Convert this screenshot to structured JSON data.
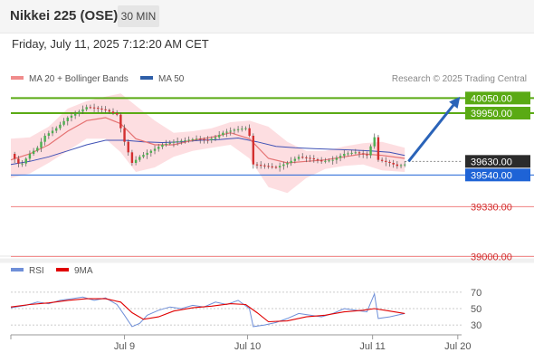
{
  "header": {
    "title": "Nikkei 225 (OSE)",
    "timeframe": "30 MIN"
  },
  "datetime": "Friday, July 11, 2025 7:12:20 AM CET",
  "legend": {
    "ma20": "MA 20 + Bollinger Bands",
    "ma50": "MA 50",
    "copyright": "Research © 2025 Trading Central"
  },
  "colors": {
    "bull_candle": "#4caf50",
    "bear_candle": "#d32f2f",
    "ma20": "#e57373",
    "ma50": "#3f51b5",
    "band_fill": "#fdd8dc",
    "target_level": "#5aaa14",
    "pivot_level": "#1e63d6",
    "support_level": "#f08080",
    "rsi": "#6f8fd8",
    "rsi_ma": "#e00000",
    "arrow": "#2a63b8"
  },
  "chart_data": [
    {
      "type": "candlestick",
      "title": "Nikkei 225 (OSE)",
      "timeframe": "30 MIN",
      "x_ticks": [
        "Jul 9",
        "Jul 10",
        "Jul 11",
        "Jul 20"
      ],
      "ylim": [
        38960,
        40100
      ],
      "levels": [
        {
          "value": 40050.0,
          "label": "40050.00",
          "style": "target",
          "labeled_box": true
        },
        {
          "value": 39950.0,
          "label": "39950.00",
          "style": "target",
          "labeled_box": true
        },
        {
          "value": 39630.0,
          "label": "39630.00",
          "style": "last_price",
          "labeled_box": true
        },
        {
          "value": 39540.0,
          "label": "39540.00",
          "style": "pivot",
          "labeled_box": true
        },
        {
          "value": 39330.0,
          "label": "39330.00",
          "style": "support",
          "labeled_box": false
        },
        {
          "value": 39000.0,
          "label": "39000.00",
          "style": "support",
          "labeled_box": false
        }
      ],
      "close_path": [
        {
          "x": 0,
          "y": 39680
        },
        {
          "x": 5,
          "y": 39600
        },
        {
          "x": 10,
          "y": 39680
        },
        {
          "x": 14,
          "y": 39720
        },
        {
          "x": 18,
          "y": 39800
        },
        {
          "x": 24,
          "y": 39850
        },
        {
          "x": 30,
          "y": 39920
        },
        {
          "x": 36,
          "y": 39960
        },
        {
          "x": 40,
          "y": 39990
        },
        {
          "x": 44,
          "y": 39985
        },
        {
          "x": 50,
          "y": 39970
        },
        {
          "x": 56,
          "y": 39940
        },
        {
          "x": 60,
          "y": 39760
        },
        {
          "x": 64,
          "y": 39620
        },
        {
          "x": 68,
          "y": 39660
        },
        {
          "x": 74,
          "y": 39700
        },
        {
          "x": 80,
          "y": 39740
        },
        {
          "x": 86,
          "y": 39760
        },
        {
          "x": 92,
          "y": 39770
        },
        {
          "x": 98,
          "y": 39780
        },
        {
          "x": 104,
          "y": 39770
        },
        {
          "x": 108,
          "y": 39790
        },
        {
          "x": 112,
          "y": 39820
        },
        {
          "x": 118,
          "y": 39840
        },
        {
          "x": 124,
          "y": 39850
        },
        {
          "x": 126,
          "y": 39800
        },
        {
          "x": 128,
          "y": 39610
        },
        {
          "x": 134,
          "y": 39600
        },
        {
          "x": 140,
          "y": 39590
        },
        {
          "x": 146,
          "y": 39620
        },
        {
          "x": 152,
          "y": 39660
        },
        {
          "x": 158,
          "y": 39650
        },
        {
          "x": 164,
          "y": 39630
        },
        {
          "x": 170,
          "y": 39640
        },
        {
          "x": 176,
          "y": 39680
        },
        {
          "x": 182,
          "y": 39690
        },
        {
          "x": 188,
          "y": 39670
        },
        {
          "x": 192,
          "y": 39790
        },
        {
          "x": 194,
          "y": 39640
        },
        {
          "x": 200,
          "y": 39620
        },
        {
          "x": 204,
          "y": 39600
        },
        {
          "x": 208,
          "y": 39610
        }
      ],
      "ma20": [
        {
          "x": 0,
          "y": 39640
        },
        {
          "x": 10,
          "y": 39680
        },
        {
          "x": 20,
          "y": 39740
        },
        {
          "x": 30,
          "y": 39830
        },
        {
          "x": 40,
          "y": 39900
        },
        {
          "x": 50,
          "y": 39920
        },
        {
          "x": 58,
          "y": 39880
        },
        {
          "x": 66,
          "y": 39780
        },
        {
          "x": 76,
          "y": 39740
        },
        {
          "x": 86,
          "y": 39740
        },
        {
          "x": 96,
          "y": 39770
        },
        {
          "x": 106,
          "y": 39790
        },
        {
          "x": 116,
          "y": 39820
        },
        {
          "x": 126,
          "y": 39780
        },
        {
          "x": 136,
          "y": 39650
        },
        {
          "x": 146,
          "y": 39620
        },
        {
          "x": 156,
          "y": 39630
        },
        {
          "x": 166,
          "y": 39640
        },
        {
          "x": 176,
          "y": 39660
        },
        {
          "x": 186,
          "y": 39680
        },
        {
          "x": 196,
          "y": 39670
        },
        {
          "x": 208,
          "y": 39650
        }
      ],
      "ma50": [
        {
          "x": 0,
          "y": 39610
        },
        {
          "x": 10,
          "y": 39630
        },
        {
          "x": 20,
          "y": 39660
        },
        {
          "x": 30,
          "y": 39700
        },
        {
          "x": 40,
          "y": 39740
        },
        {
          "x": 50,
          "y": 39770
        },
        {
          "x": 60,
          "y": 39770
        },
        {
          "x": 70,
          "y": 39760
        },
        {
          "x": 80,
          "y": 39755
        },
        {
          "x": 90,
          "y": 39760
        },
        {
          "x": 100,
          "y": 39770
        },
        {
          "x": 110,
          "y": 39775
        },
        {
          "x": 120,
          "y": 39785
        },
        {
          "x": 130,
          "y": 39760
        },
        {
          "x": 140,
          "y": 39730
        },
        {
          "x": 150,
          "y": 39720
        },
        {
          "x": 160,
          "y": 39715
        },
        {
          "x": 170,
          "y": 39710
        },
        {
          "x": 180,
          "y": 39705
        },
        {
          "x": 190,
          "y": 39700
        },
        {
          "x": 200,
          "y": 39690
        },
        {
          "x": 208,
          "y": 39670
        }
      ],
      "bb_upper": [
        {
          "x": 0,
          "y": 39780
        },
        {
          "x": 10,
          "y": 39790
        },
        {
          "x": 20,
          "y": 39860
        },
        {
          "x": 30,
          "y": 39980
        },
        {
          "x": 40,
          "y": 40030
        },
        {
          "x": 50,
          "y": 40060
        },
        {
          "x": 58,
          "y": 40080
        },
        {
          "x": 66,
          "y": 40000
        },
        {
          "x": 76,
          "y": 39900
        },
        {
          "x": 86,
          "y": 39820
        },
        {
          "x": 96,
          "y": 39830
        },
        {
          "x": 106,
          "y": 39850
        },
        {
          "x": 116,
          "y": 39890
        },
        {
          "x": 126,
          "y": 39900
        },
        {
          "x": 136,
          "y": 39860
        },
        {
          "x": 146,
          "y": 39760
        },
        {
          "x": 156,
          "y": 39700
        },
        {
          "x": 166,
          "y": 39700
        },
        {
          "x": 176,
          "y": 39730
        },
        {
          "x": 186,
          "y": 39750
        },
        {
          "x": 196,
          "y": 39760
        },
        {
          "x": 208,
          "y": 39720
        }
      ],
      "bb_lower": [
        {
          "x": 0,
          "y": 39520
        },
        {
          "x": 10,
          "y": 39550
        },
        {
          "x": 20,
          "y": 39620
        },
        {
          "x": 30,
          "y": 39700
        },
        {
          "x": 40,
          "y": 39780
        },
        {
          "x": 50,
          "y": 39780
        },
        {
          "x": 58,
          "y": 39690
        },
        {
          "x": 66,
          "y": 39560
        },
        {
          "x": 76,
          "y": 39590
        },
        {
          "x": 86,
          "y": 39660
        },
        {
          "x": 96,
          "y": 39700
        },
        {
          "x": 106,
          "y": 39720
        },
        {
          "x": 116,
          "y": 39740
        },
        {
          "x": 126,
          "y": 39650
        },
        {
          "x": 136,
          "y": 39460
        },
        {
          "x": 146,
          "y": 39420
        },
        {
          "x": 156,
          "y": 39520
        },
        {
          "x": 166,
          "y": 39580
        },
        {
          "x": 176,
          "y": 39600
        },
        {
          "x": 186,
          "y": 39610
        },
        {
          "x": 196,
          "y": 39570
        },
        {
          "x": 208,
          "y": 39560
        }
      ],
      "forecast_arrow": {
        "from": {
          "x": 210,
          "y": 39630
        },
        "to": {
          "x": 236,
          "y": 40040
        }
      }
    },
    {
      "type": "line",
      "title": "",
      "legend": [
        "RSI",
        "9MA"
      ],
      "y_ticks": [
        70,
        50,
        30
      ],
      "ylim": [
        18,
        82
      ],
      "rsi": [
        {
          "x": 0,
          "y": 51
        },
        {
          "x": 8,
          "y": 54
        },
        {
          "x": 14,
          "y": 58
        },
        {
          "x": 20,
          "y": 56
        },
        {
          "x": 26,
          "y": 60
        },
        {
          "x": 32,
          "y": 62
        },
        {
          "x": 38,
          "y": 64
        },
        {
          "x": 44,
          "y": 60
        },
        {
          "x": 50,
          "y": 63
        },
        {
          "x": 56,
          "y": 55
        },
        {
          "x": 60,
          "y": 42
        },
        {
          "x": 64,
          "y": 28
        },
        {
          "x": 68,
          "y": 32
        },
        {
          "x": 72,
          "y": 42
        },
        {
          "x": 78,
          "y": 48
        },
        {
          "x": 84,
          "y": 52
        },
        {
          "x": 90,
          "y": 50
        },
        {
          "x": 96,
          "y": 54
        },
        {
          "x": 102,
          "y": 52
        },
        {
          "x": 108,
          "y": 58
        },
        {
          "x": 114,
          "y": 55
        },
        {
          "x": 120,
          "y": 60
        },
        {
          "x": 126,
          "y": 50
        },
        {
          "x": 128,
          "y": 28
        },
        {
          "x": 134,
          "y": 30
        },
        {
          "x": 140,
          "y": 33
        },
        {
          "x": 146,
          "y": 38
        },
        {
          "x": 152,
          "y": 44
        },
        {
          "x": 158,
          "y": 42
        },
        {
          "x": 164,
          "y": 40
        },
        {
          "x": 170,
          "y": 44
        },
        {
          "x": 176,
          "y": 50
        },
        {
          "x": 182,
          "y": 48
        },
        {
          "x": 188,
          "y": 46
        },
        {
          "x": 192,
          "y": 68
        },
        {
          "x": 194,
          "y": 38
        },
        {
          "x": 200,
          "y": 40
        },
        {
          "x": 204,
          "y": 42
        },
        {
          "x": 208,
          "y": 44
        }
      ],
      "ma9": [
        {
          "x": 0,
          "y": 52
        },
        {
          "x": 10,
          "y": 55
        },
        {
          "x": 20,
          "y": 57
        },
        {
          "x": 30,
          "y": 60
        },
        {
          "x": 40,
          "y": 62
        },
        {
          "x": 50,
          "y": 62
        },
        {
          "x": 58,
          "y": 58
        },
        {
          "x": 64,
          "y": 45
        },
        {
          "x": 70,
          "y": 37
        },
        {
          "x": 78,
          "y": 40
        },
        {
          "x": 86,
          "y": 47
        },
        {
          "x": 96,
          "y": 51
        },
        {
          "x": 106,
          "y": 53
        },
        {
          "x": 116,
          "y": 56
        },
        {
          "x": 124,
          "y": 55
        },
        {
          "x": 130,
          "y": 45
        },
        {
          "x": 136,
          "y": 34
        },
        {
          "x": 146,
          "y": 35
        },
        {
          "x": 156,
          "y": 40
        },
        {
          "x": 166,
          "y": 42
        },
        {
          "x": 176,
          "y": 46
        },
        {
          "x": 186,
          "y": 48
        },
        {
          "x": 192,
          "y": 50
        },
        {
          "x": 200,
          "y": 47
        },
        {
          "x": 208,
          "y": 44
        }
      ]
    }
  ]
}
